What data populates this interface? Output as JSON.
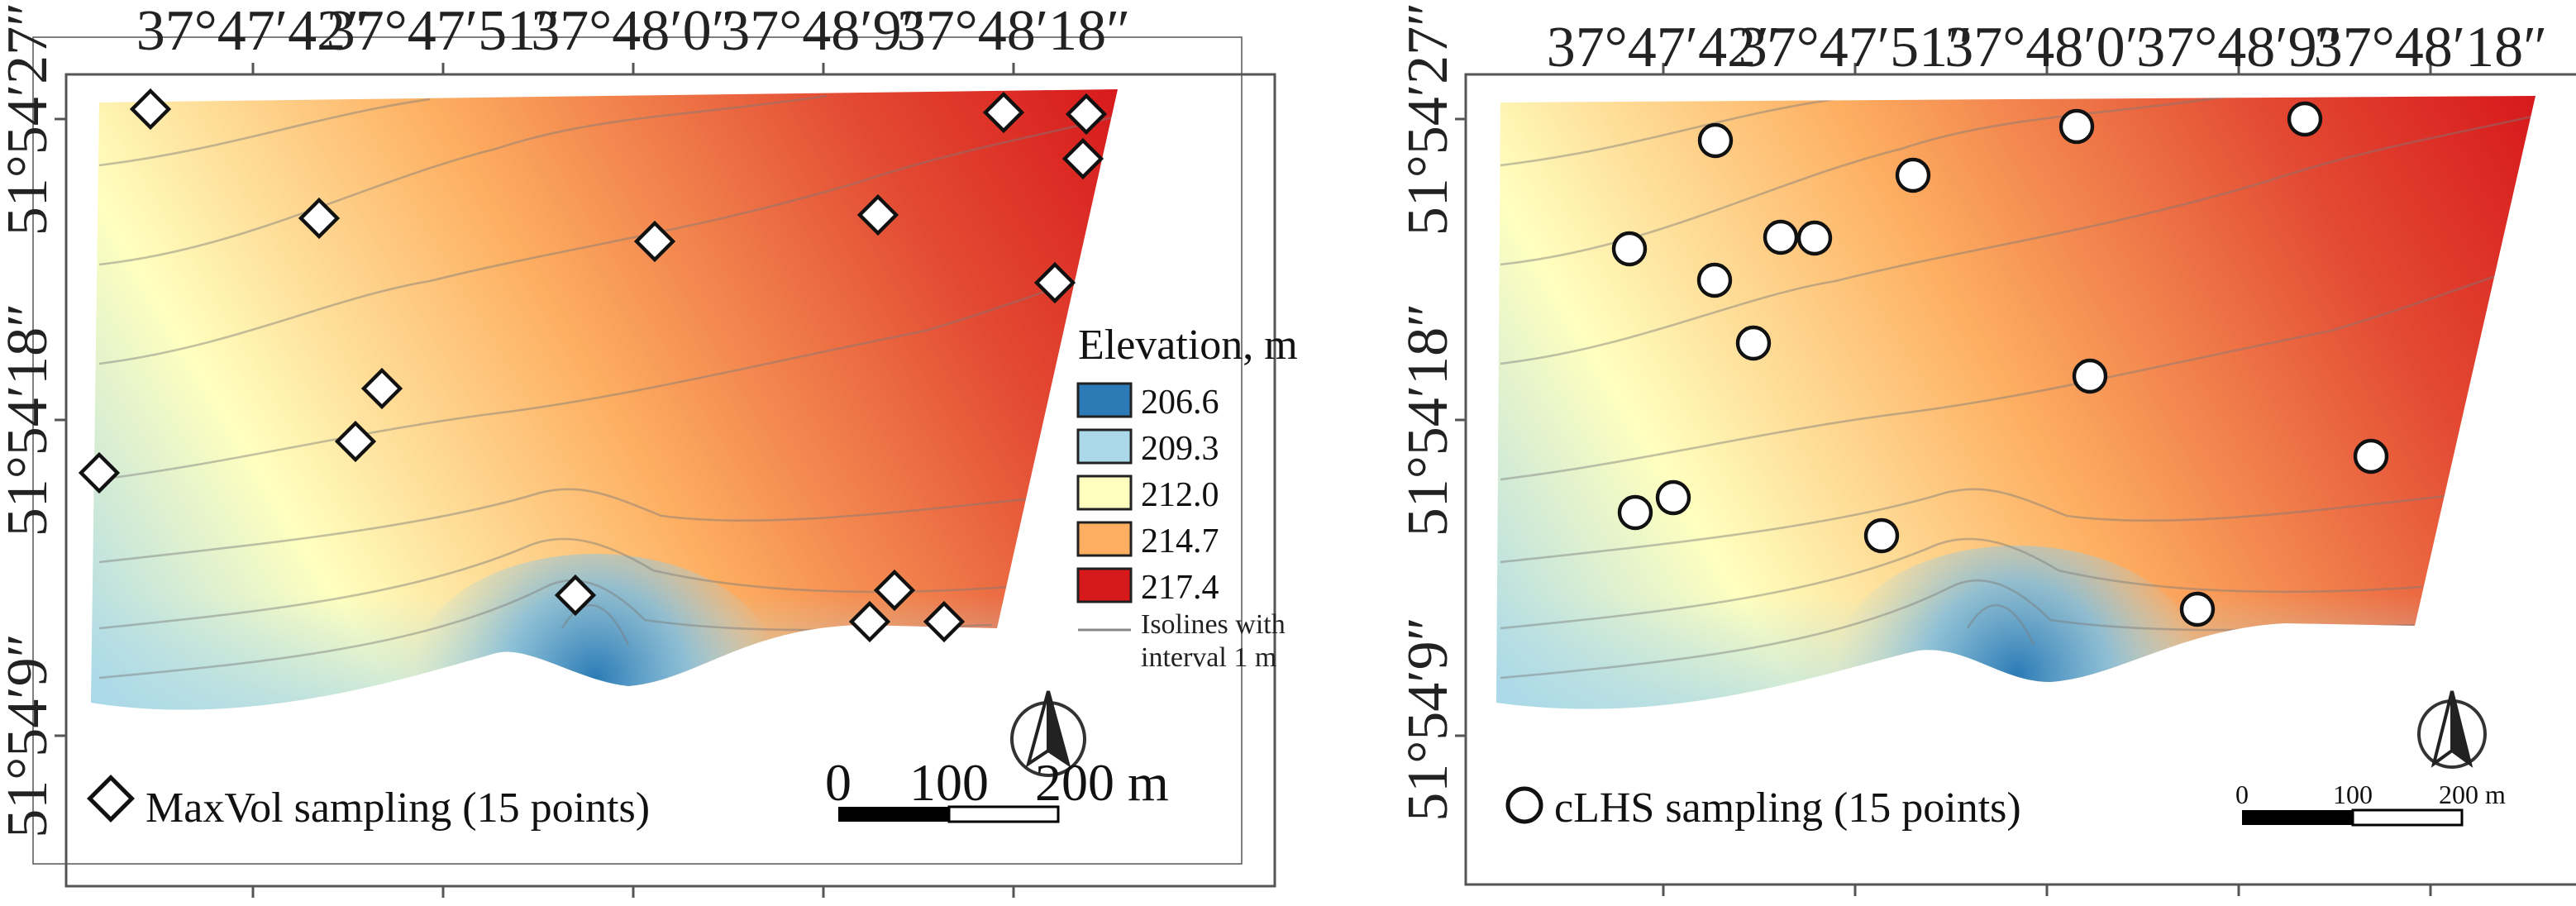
{
  "figure": {
    "panels": [
      {
        "id": "maxvol",
        "lon_labels": [
          "37°47′42″",
          "37°47′51″",
          "37°48′0″",
          "37°48′9″",
          "37°48′18″"
        ],
        "lat_labels": [
          "51°54′27″",
          "51°54′18″",
          "51°54′9″"
        ],
        "sampling_label": "MaxVol sampling (15 points)",
        "marker": "diamond",
        "scale": {
          "labels": [
            "0",
            "100",
            "200 m"
          ]
        },
        "north_arrow": "north-arrow-icon",
        "points": [
          [
            91,
            66
          ],
          [
            193,
            132
          ],
          [
            60,
            286
          ],
          [
            215,
            267
          ],
          [
            231,
            235
          ],
          [
            396,
            146
          ],
          [
            348,
            360
          ],
          [
            531,
            130
          ],
          [
            607,
            68
          ],
          [
            657,
            69
          ],
          [
            655,
            96
          ],
          [
            638,
            171
          ],
          [
            541,
            357
          ],
          [
            526,
            376
          ],
          [
            571,
            376
          ]
        ]
      },
      {
        "id": "clhs",
        "lon_labels": [
          "37°47′42″",
          "37°47′51″",
          "37°48′0″",
          "37°48′9″",
          "37°48′18″"
        ],
        "lat_labels": [
          "51°54′27″",
          "51°54′18″",
          "51°54′9″"
        ],
        "sampling_label": "cLHS sampling (15 points)",
        "marker": "circle",
        "scale": {
          "labels": [
            "0",
            "100",
            "200 m"
          ]
        },
        "north_arrow": "north-arrow-icon",
        "points": [
          [
            2075,
            170
          ],
          [
            1971,
            301
          ],
          [
            2154,
            287
          ],
          [
            2195,
            288
          ],
          [
            2314,
            212
          ],
          [
            2074,
            339
          ],
          [
            2121,
            415
          ],
          [
            2512,
            153
          ],
          [
            2788,
            144
          ],
          [
            2528,
            455
          ],
          [
            2276,
            648
          ],
          [
            2868,
            552
          ],
          [
            1978,
            620
          ],
          [
            2024,
            602
          ],
          [
            2658,
            737
          ]
        ]
      }
    ],
    "legend": {
      "title": "Elevation, m",
      "entries": [
        {
          "value": "206.6",
          "color": "#2c7bb6"
        },
        {
          "value": "209.3",
          "color": "#abd9e9"
        },
        {
          "value": "212.0",
          "color": "#ffffbf"
        },
        {
          "value": "214.7",
          "color": "#fdae61"
        },
        {
          "value": "217.4",
          "color": "#d7191c"
        }
      ],
      "isolines_label_line1": "Isolines with",
      "isolines_label_line2": "interval 1 m"
    }
  }
}
